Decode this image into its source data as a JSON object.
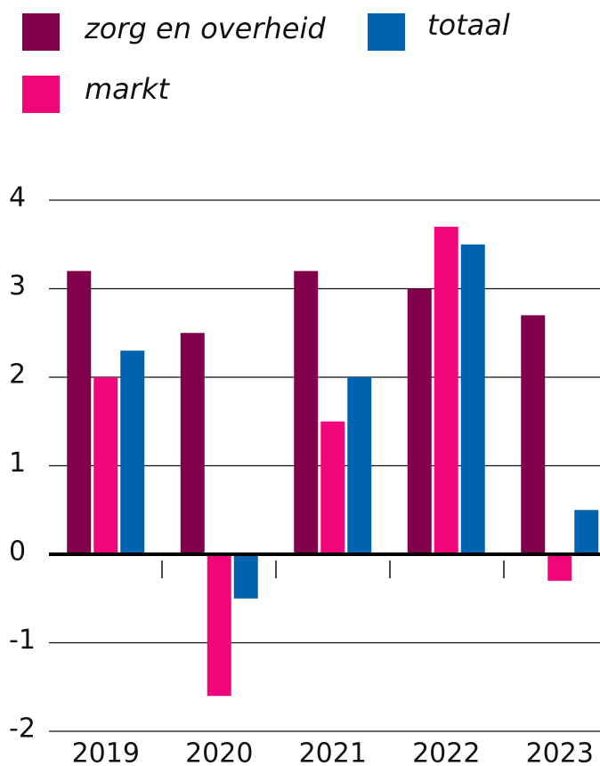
{
  "chart_data": {
    "type": "bar",
    "categories": [
      "2019",
      "2020",
      "2021",
      "2022",
      "2023"
    ],
    "series": [
      {
        "name": "zorg en overheid",
        "color": "#80004a",
        "values": [
          3.2,
          2.5,
          3.2,
          3.0,
          2.7
        ]
      },
      {
        "name": "markt",
        "color": "#f0067a",
        "values": [
          2.0,
          -1.6,
          1.5,
          3.7,
          -0.3
        ]
      },
      {
        "name": "totaal",
        "color": "#0063b0",
        "values": [
          2.3,
          -0.5,
          2.0,
          3.5,
          0.5
        ]
      }
    ],
    "ylim": [
      -2,
      4
    ],
    "yticks": [
      -2,
      -1,
      0,
      1,
      2,
      3,
      4
    ],
    "grid": true,
    "legend": "top"
  }
}
